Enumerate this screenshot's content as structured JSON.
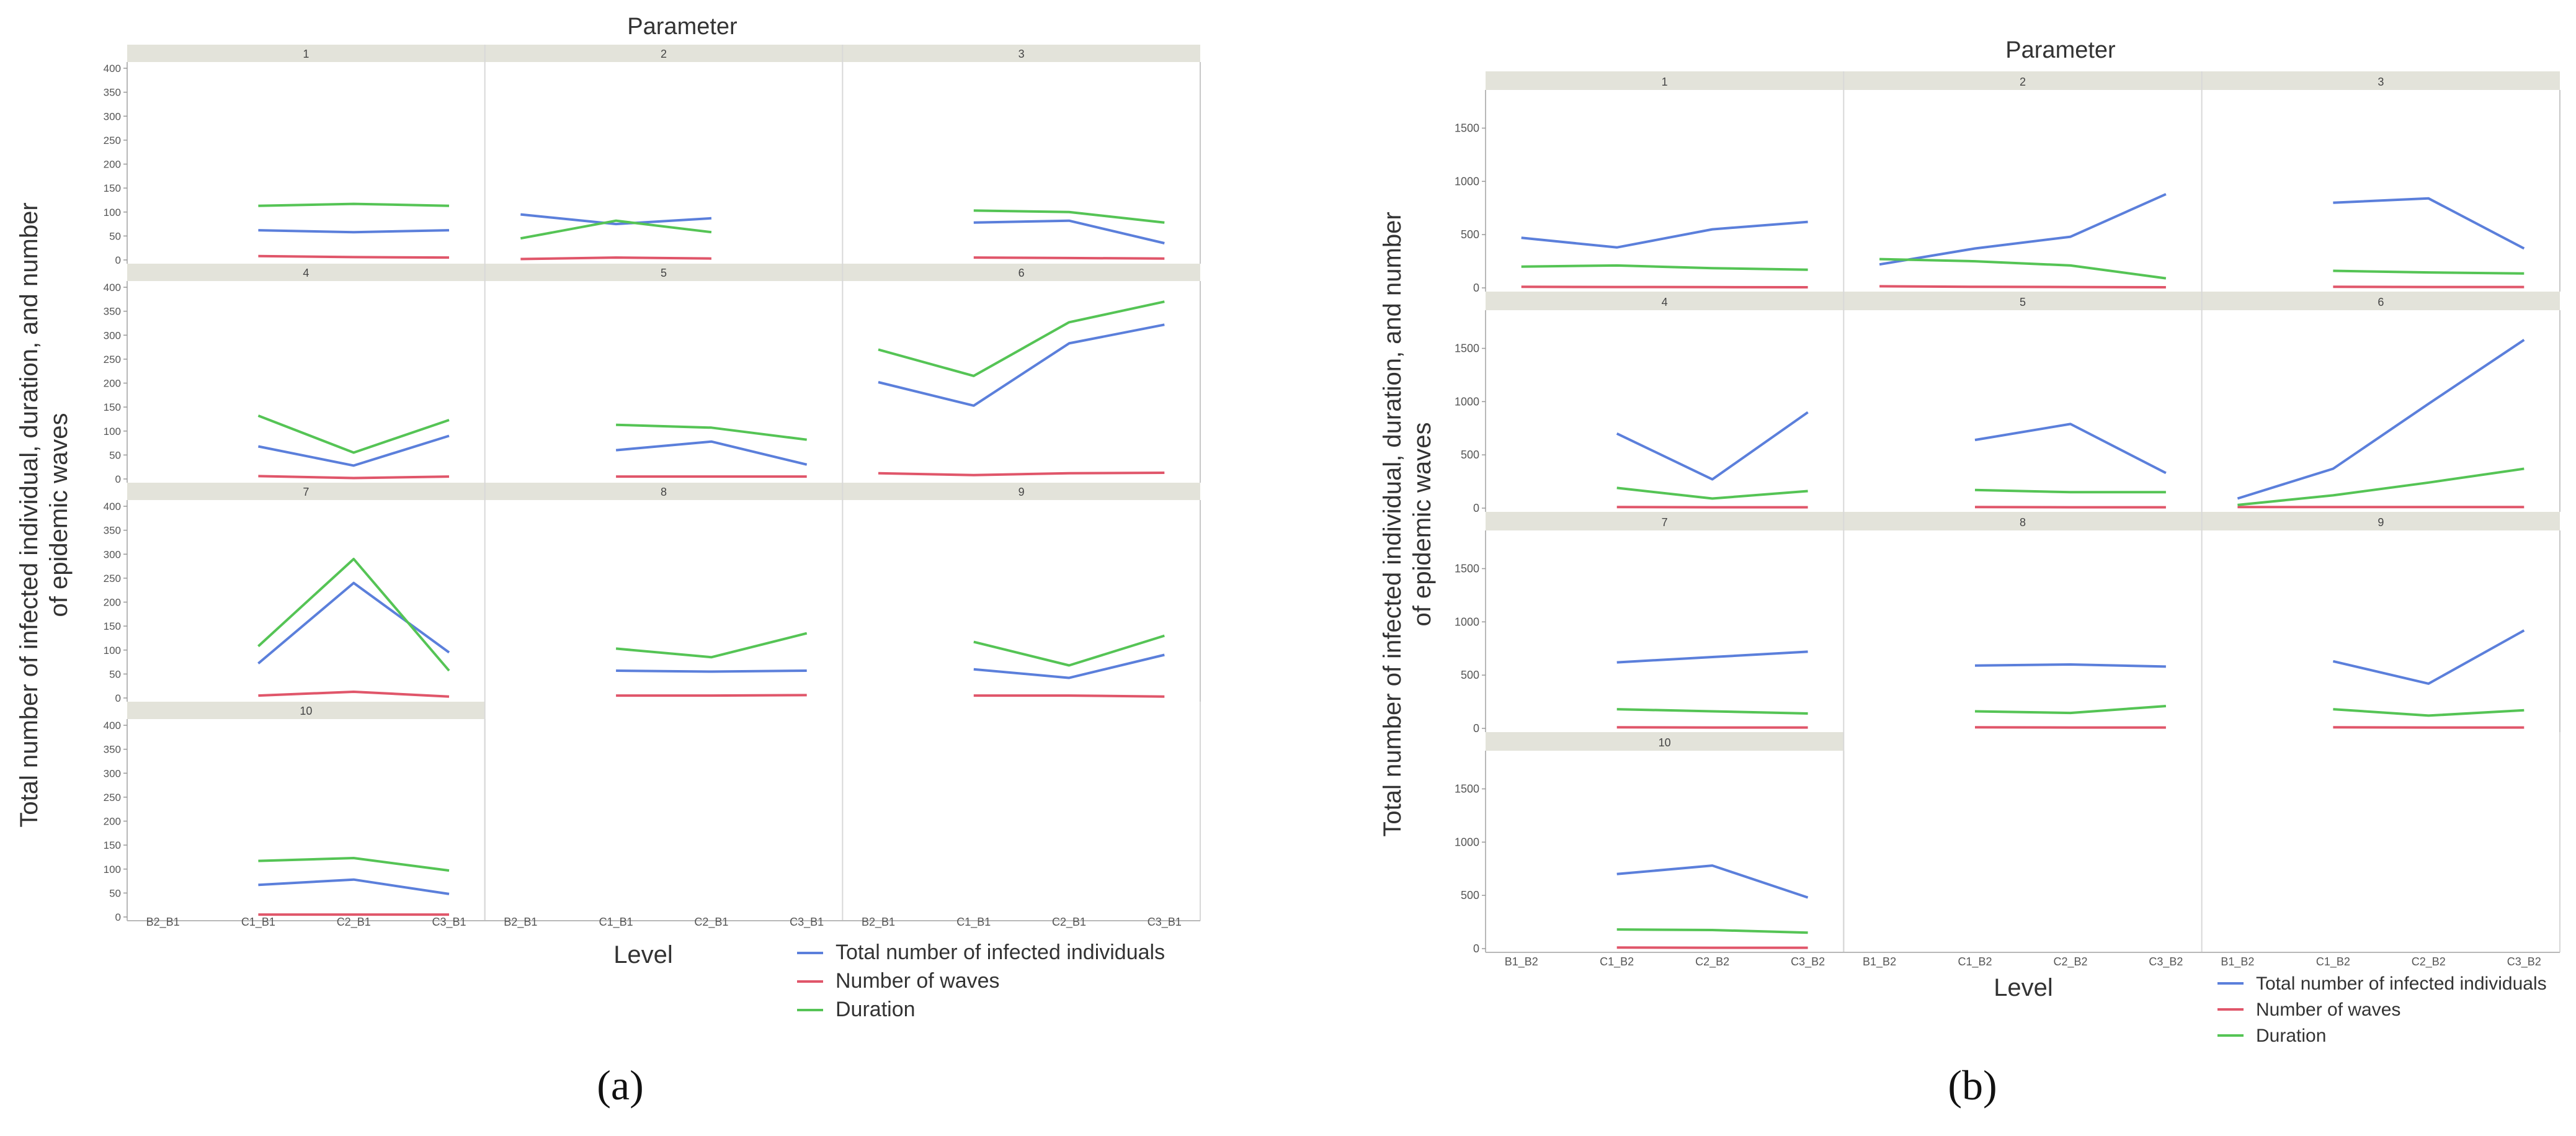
{
  "figure_captions": [
    "(a)",
    "(b)"
  ],
  "chart_data": [
    {
      "type": "line",
      "panel_label": "(a)",
      "title": "Parameter",
      "xlabel": "Level",
      "ylabel_lines": [
        "Total number of infected individual, duration, and number",
        "of epidemic waves"
      ],
      "x_tick_labels": [
        "B2_B1",
        "C1_B1",
        "C2_B1",
        "C3_B1"
      ],
      "y_ticks": [
        0,
        50,
        100,
        150,
        200,
        250,
        300,
        350,
        400
      ],
      "ylim": [
        0,
        400
      ],
      "facet_labels": [
        "1",
        "2",
        "3",
        "4",
        "5",
        "6",
        "7",
        "8",
        "9",
        "10"
      ],
      "legend": [
        "Total number of infected individuals",
        "Number of waves",
        "Duration"
      ],
      "colors": [
        "#5b7fdb",
        "#e0566a",
        "#55c455"
      ],
      "facets": [
        {
          "series": [
            [
              null,
              62,
              58,
              62
            ],
            [
              null,
              8,
              6,
              5
            ],
            [
              null,
              113,
              117,
              113
            ]
          ]
        },
        {
          "series": [
            [
              95,
              75,
              87,
              null
            ],
            [
              2,
              5,
              3,
              null
            ],
            [
              45,
              82,
              58,
              null
            ]
          ]
        },
        {
          "series": [
            [
              null,
              78,
              82,
              35
            ],
            [
              null,
              5,
              4,
              3
            ],
            [
              null,
              103,
              100,
              78
            ]
          ]
        },
        {
          "series": [
            [
              null,
              68,
              28,
              90
            ],
            [
              null,
              6,
              2,
              5
            ],
            [
              null,
              132,
              55,
              123
            ]
          ]
        },
        {
          "series": [
            [
              null,
              60,
              78,
              30
            ],
            [
              null,
              5,
              5,
              5
            ],
            [
              null,
              113,
              107,
              82
            ]
          ]
        },
        {
          "series": [
            [
              202,
              153,
              283,
              322
            ],
            [
              12,
              8,
              12,
              13
            ],
            [
              270,
              215,
              327,
              370
            ]
          ]
        },
        {
          "series": [
            [
              null,
              72,
              240,
              95
            ],
            [
              null,
              5,
              13,
              3
            ],
            [
              null,
              108,
              290,
              57
            ]
          ]
        },
        {
          "series": [
            [
              null,
              57,
              55,
              57
            ],
            [
              null,
              5,
              5,
              6
            ],
            [
              null,
              103,
              85,
              135
            ]
          ]
        },
        {
          "series": [
            [
              null,
              60,
              42,
              90
            ],
            [
              null,
              5,
              5,
              3
            ],
            [
              null,
              117,
              68,
              130
            ]
          ]
        },
        {
          "series": [
            [
              null,
              67,
              78,
              48
            ],
            [
              null,
              5,
              5,
              5
            ],
            [
              null,
              117,
              123,
              97
            ]
          ]
        }
      ]
    },
    {
      "type": "line",
      "panel_label": "(b)",
      "title": "Parameter",
      "xlabel": "Level",
      "ylabel_lines": [
        "Total number of infected individual, duration, and number",
        "of epidemic waves"
      ],
      "x_tick_labels": [
        "B1_B2",
        "C1_B2",
        "C2_B2",
        "C3_B2"
      ],
      "y_ticks": [
        0,
        500,
        1000,
        1500
      ],
      "ylim": [
        0,
        1800
      ],
      "facet_labels": [
        "1",
        "2",
        "3",
        "4",
        "5",
        "6",
        "7",
        "8",
        "9",
        "10"
      ],
      "legend": [
        "Total number of infected individuals",
        "Number of waves",
        "Duration"
      ],
      "colors": [
        "#5b7fdb",
        "#e0566a",
        "#55c455"
      ],
      "facets": [
        {
          "series": [
            [
              470,
              380,
              550,
              620
            ],
            [
              10,
              8,
              7,
              6
            ],
            [
              200,
              210,
              185,
              170
            ]
          ]
        },
        {
          "series": [
            [
              220,
              370,
              480,
              880
            ],
            [
              15,
              10,
              8,
              6
            ],
            [
              270,
              250,
              210,
              90
            ]
          ]
        },
        {
          "series": [
            [
              null,
              800,
              840,
              370
            ],
            [
              null,
              10,
              8,
              8
            ],
            [
              null,
              160,
              145,
              135
            ]
          ]
        },
        {
          "series": [
            [
              null,
              700,
              270,
              900
            ],
            [
              null,
              10,
              8,
              8
            ],
            [
              null,
              190,
              90,
              160
            ]
          ]
        },
        {
          "series": [
            [
              null,
              640,
              790,
              330
            ],
            [
              null,
              10,
              8,
              8
            ],
            [
              null,
              170,
              150,
              150
            ]
          ]
        },
        {
          "series": [
            [
              90,
              370,
              980,
              1580
            ],
            [
              10,
              10,
              10,
              10
            ],
            [
              30,
              120,
              240,
              370
            ]
          ]
        },
        {
          "series": [
            [
              null,
              620,
              670,
              720
            ],
            [
              null,
              10,
              8,
              8
            ],
            [
              null,
              180,
              160,
              140
            ]
          ]
        },
        {
          "series": [
            [
              null,
              590,
              600,
              580
            ],
            [
              null,
              10,
              8,
              8
            ],
            [
              null,
              160,
              145,
              210
            ]
          ]
        },
        {
          "series": [
            [
              null,
              630,
              420,
              920
            ],
            [
              null,
              10,
              8,
              8
            ],
            [
              null,
              180,
              120,
              170
            ]
          ]
        },
        {
          "series": [
            [
              null,
              700,
              780,
              480
            ],
            [
              null,
              10,
              8,
              8
            ],
            [
              null,
              180,
              175,
              150
            ]
          ]
        }
      ]
    }
  ]
}
